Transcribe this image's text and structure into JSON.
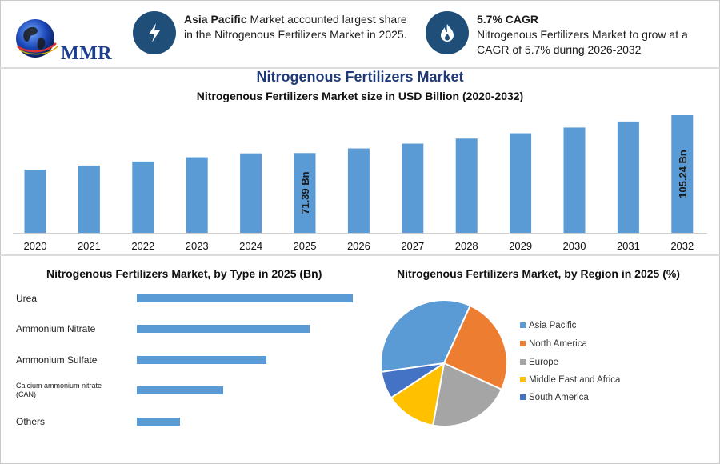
{
  "logo": {
    "text": "MMR"
  },
  "info": [
    {
      "bold": "Asia Pacific",
      "text": " Market accounted largest share in the Nitrogenous Fertilizers Market in 2025.",
      "icon": "lightning-icon"
    },
    {
      "bold": "5.7% CAGR",
      "text": "Nitrogenous Fertilizers Market to grow at a CAGR of 5.7% during 2026-2032",
      "icon": "flame-icon"
    }
  ],
  "title": "Nitrogenous Fertilizers Market",
  "subtitle": "Nitrogenous Fertilizers Market size in USD Billion (2020-2032)",
  "colors": {
    "bar": "#5b9bd5",
    "accent_dark": "#1f4e79",
    "title": "#1f3a78"
  },
  "chart_data": [
    {
      "type": "bar",
      "title": "Nitrogenous Fertilizers Market size in USD Billion (2020-2032)",
      "categories": [
        "2020",
        "2021",
        "2022",
        "2023",
        "2024",
        "2025",
        "2026",
        "2027",
        "2028",
        "2029",
        "2030",
        "2031",
        "2032"
      ],
      "values": [
        56.5,
        60.2,
        63.8,
        67.6,
        71.1,
        71.39,
        75.5,
        79.8,
        84.3,
        89.1,
        94.2,
        99.6,
        105.24
      ],
      "data_labels": {
        "5": "71.39 Bn",
        "12": "105.24 Bn"
      },
      "ylim": [
        0,
        110
      ]
    },
    {
      "type": "bar",
      "orientation": "horizontal",
      "title": "Nitrogenous Fertilizers Market, by Type in 2025 (Bn)",
      "categories": [
        "Urea",
        "Ammonium Nitrate",
        "Ammonium Sulfate",
        "Calcium ammonium nitrate (CAN)",
        "Others"
      ],
      "category_labels": [
        [
          "Urea"
        ],
        [
          "Ammonium Nitrate"
        ],
        [
          "Ammonium Sulfate"
        ],
        [
          "Calcium ammonium nitrate",
          "(CAN)"
        ],
        [
          "Others"
        ]
      ],
      "values": [
        30,
        24,
        18,
        12,
        6
      ],
      "xlim": [
        0,
        30
      ]
    },
    {
      "type": "pie",
      "title": "Nitrogenous Fertilizers Market, by Region in 2025 (%)",
      "labels": [
        "Asia Pacific",
        "North America",
        "Europe",
        "Middle East and Africa",
        "South America"
      ],
      "values": [
        34,
        25,
        21,
        13,
        7
      ],
      "colors": [
        "#5b9bd5",
        "#ed7d31",
        "#a5a5a5",
        "#ffc000",
        "#4472c4"
      ],
      "legend": "right"
    }
  ]
}
